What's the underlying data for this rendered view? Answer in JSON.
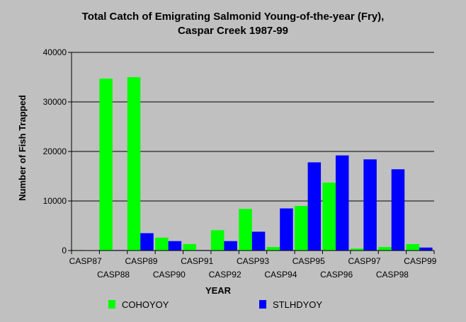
{
  "chart_data": {
    "type": "bar",
    "title_line1": "Total Catch of Emigrating Salmonid Young-of-the-year (Fry),",
    "title_line2": "Caspar Creek 1987-99",
    "xlabel": "YEAR",
    "ylabel": "Number of Fish Trapped",
    "ylim": [
      0,
      40000
    ],
    "yticks": [
      "0",
      "10000",
      "20000",
      "30000",
      "40000"
    ],
    "categories": [
      "CASP87",
      "CASP88",
      "CASP89",
      "CASP90",
      "CASP91",
      "CASP92",
      "CASP93",
      "CASP94",
      "CASP95",
      "CASP96",
      "CASP97",
      "CASP98",
      "CASP99"
    ],
    "series": [
      {
        "name": "COHOYOY",
        "color": "#00ff00",
        "values": [
          100,
          34700,
          35000,
          2600,
          1300,
          4100,
          8400,
          700,
          9000,
          13700,
          400,
          700,
          1300
        ]
      },
      {
        "name": "STLHDYOY",
        "color": "#0000ff",
        "values": [
          0,
          100,
          3500,
          1900,
          100,
          1900,
          3800,
          8500,
          17800,
          19200,
          18400,
          16400,
          600
        ]
      }
    ],
    "grid": "horizontal",
    "legend_position": "bottom"
  }
}
